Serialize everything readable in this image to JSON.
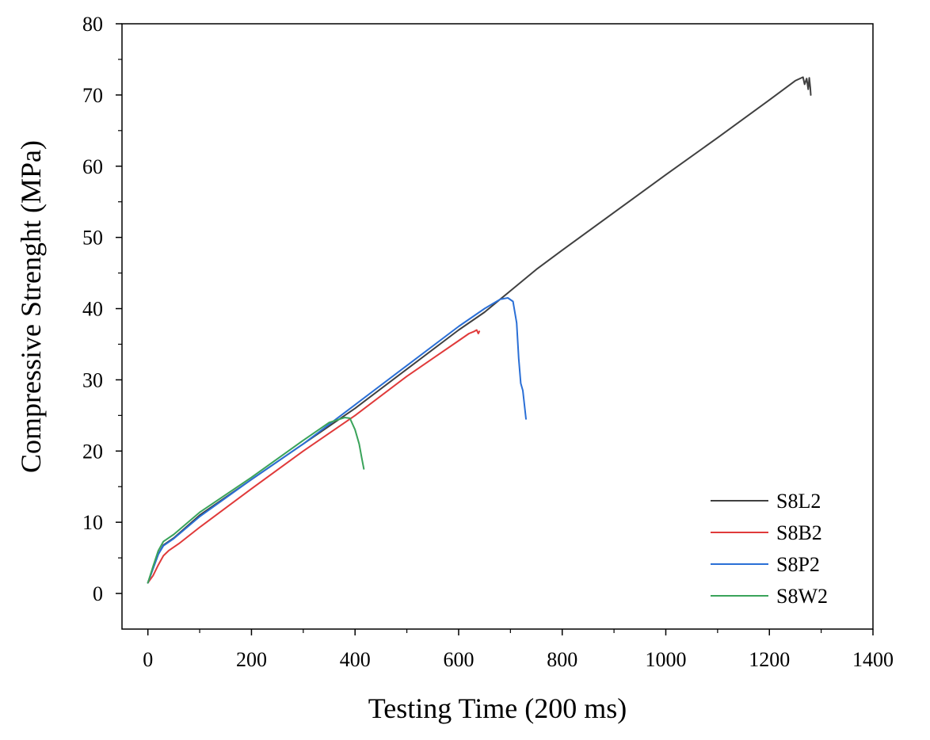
{
  "chart_data": {
    "type": "line",
    "title": "",
    "xlabel": "Testing Time (200 ms)",
    "ylabel": "Compressive Strenght (MPa)",
    "xlim": [
      -50,
      1400
    ],
    "ylim": [
      -5,
      80
    ],
    "xticks": [
      0,
      200,
      400,
      600,
      800,
      1000,
      1200,
      1400
    ],
    "yticks": [
      0,
      10,
      20,
      30,
      40,
      50,
      60,
      70,
      80
    ],
    "xtick_labels": [
      "0",
      "200",
      "400",
      "600",
      "800",
      "1000",
      "1200",
      "1400"
    ],
    "ytick_labels": [
      "0",
      "10",
      "20",
      "30",
      "40",
      "50",
      "60",
      "70",
      "80"
    ],
    "grid": false,
    "legend_position": "bottom-right",
    "series": [
      {
        "name": "S8L2",
        "color": "#404040",
        "x": [
          0,
          10,
          20,
          30,
          50,
          100,
          200,
          300,
          400,
          500,
          600,
          650,
          700,
          750,
          800,
          900,
          1000,
          1100,
          1200,
          1250,
          1265,
          1268,
          1272,
          1275,
          1277,
          1279,
          1280
        ],
        "y": [
          1.5,
          3.5,
          5.5,
          6.8,
          7.8,
          11,
          16,
          21,
          26,
          31.5,
          37,
          39.5,
          42.5,
          45.5,
          48.2,
          53.5,
          58.8,
          64,
          69.3,
          72,
          72.5,
          71.5,
          72.3,
          70.8,
          72.4,
          71,
          70
        ]
      },
      {
        "name": "S8B2",
        "color": "#e03a3a",
        "x": [
          0,
          10,
          20,
          30,
          40,
          60,
          100,
          200,
          300,
          400,
          500,
          550,
          600,
          620,
          630,
          635,
          638,
          640
        ],
        "y": [
          1.5,
          2.5,
          4,
          5.3,
          6,
          7,
          9.3,
          14.7,
          20,
          25,
          30.5,
          33,
          35.5,
          36.5,
          36.8,
          37,
          36.5,
          36.8
        ]
      },
      {
        "name": "S8P2",
        "color": "#2a6fd6",
        "x": [
          0,
          10,
          20,
          30,
          50,
          100,
          200,
          300,
          400,
          500,
          600,
          650,
          680,
          695,
          705,
          712,
          716,
          720,
          724,
          730
        ],
        "y": [
          1.5,
          3.5,
          5.5,
          6.7,
          7.7,
          10.8,
          16,
          21,
          26.5,
          32,
          37.5,
          40,
          41.3,
          41.5,
          41,
          38,
          33,
          29.5,
          28.5,
          24.5
        ]
      },
      {
        "name": "S8W2",
        "color": "#3aa35a",
        "x": [
          0,
          10,
          20,
          30,
          50,
          100,
          200,
          300,
          350,
          380,
          390,
          400,
          408,
          413,
          417
        ],
        "y": [
          1.5,
          3.8,
          6,
          7.3,
          8.3,
          11.4,
          16.3,
          21.5,
          24,
          24.7,
          24.6,
          23,
          21,
          19,
          17.5
        ]
      }
    ]
  }
}
